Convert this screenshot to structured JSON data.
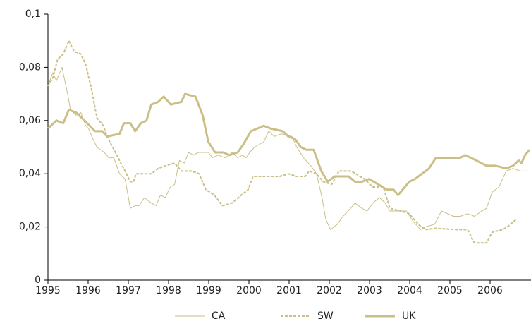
{
  "chart_data": {
    "type": "line",
    "xlim": [
      1995,
      2007
    ],
    "xticks": [
      1995,
      1996,
      1997,
      1998,
      1999,
      2000,
      2001,
      2002,
      2003,
      2004,
      2005,
      2006
    ],
    "ylim": [
      0,
      0.1
    ],
    "yticks": [
      0,
      {
        "value": 0.02,
        "label": "0,02"
      },
      {
        "value": 0.04,
        "label": "0,04"
      },
      {
        "value": 0.06,
        "label": "0,06"
      },
      {
        "value": 0.08,
        "label": "0,08"
      },
      {
        "value": 0.1,
        "label": "0,1"
      }
    ],
    "grid": false,
    "legend": "bottom",
    "series": [
      {
        "name": "CA",
        "color": "#c9bf87",
        "style": "solid",
        "line_width": 1,
        "x": [
          1995.0,
          1995.12,
          1995.21,
          1995.35,
          1995.49,
          1995.56,
          1995.7,
          1995.82,
          1995.94,
          1996.01,
          1996.12,
          1996.22,
          1996.4,
          1996.52,
          1996.64,
          1996.78,
          1996.92,
          1997.05,
          1997.17,
          1997.27,
          1997.4,
          1997.57,
          1997.69,
          1997.8,
          1997.92,
          1998.04,
          1998.15,
          1998.27,
          1998.39,
          1998.5,
          1998.62,
          1998.74,
          1998.99,
          1999.09,
          1999.23,
          1999.41,
          1999.58,
          1999.72,
          1999.84,
          1999.93,
          2000.02,
          2000.14,
          2000.37,
          2000.49,
          2000.63,
          2000.8,
          2001.07,
          2001.19,
          2001.36,
          2001.54,
          2001.68,
          2001.82,
          2001.91,
          2002.03,
          2002.2,
          2002.34,
          2002.47,
          2002.64,
          2002.81,
          2002.94,
          2003.08,
          2003.25,
          2003.39,
          2003.51,
          2003.69,
          2003.92,
          2004.09,
          2004.27,
          2004.39,
          2004.62,
          2004.79,
          2005.09,
          2005.26,
          2005.44,
          2005.61,
          2005.79,
          2005.91,
          2006.05,
          2006.22,
          2006.4,
          2006.57,
          2006.75,
          2006.98
        ],
        "values": [
          0.073,
          0.078,
          0.075,
          0.08,
          0.07,
          0.064,
          0.062,
          0.063,
          0.058,
          0.057,
          0.053,
          0.05,
          0.048,
          0.046,
          0.046,
          0.04,
          0.038,
          0.027,
          0.028,
          0.028,
          0.031,
          0.029,
          0.028,
          0.032,
          0.031,
          0.035,
          0.036,
          0.045,
          0.044,
          0.048,
          0.047,
          0.048,
          0.048,
          0.046,
          0.047,
          0.046,
          0.048,
          0.046,
          0.047,
          0.046,
          0.048,
          0.05,
          0.052,
          0.056,
          0.054,
          0.055,
          0.054,
          0.05,
          0.046,
          0.043,
          0.04,
          0.031,
          0.023,
          0.019,
          0.021,
          0.024,
          0.026,
          0.029,
          0.027,
          0.026,
          0.029,
          0.031,
          0.029,
          0.026,
          0.026,
          0.026,
          0.022,
          0.019,
          0.02,
          0.021,
          0.026,
          0.024,
          0.024,
          0.025,
          0.024,
          0.026,
          0.027,
          0.033,
          0.035,
          0.041,
          0.042,
          0.041,
          0.041
        ]
      },
      {
        "name": "SW",
        "color": "#c9bf87",
        "style": "dashed",
        "line_width": 2,
        "x": [
          1995.0,
          1995.12,
          1995.24,
          1995.38,
          1995.52,
          1995.65,
          1995.82,
          1995.94,
          1996.08,
          1996.22,
          1996.38,
          1996.47,
          1996.61,
          1996.78,
          1996.92,
          1997.05,
          1997.13,
          1997.19,
          1997.4,
          1997.57,
          1997.74,
          1997.92,
          1998.15,
          1998.32,
          1998.57,
          1998.76,
          1998.93,
          1999.14,
          1999.34,
          1999.58,
          1999.81,
          1999.98,
          2000.1,
          2000.45,
          2000.77,
          2000.98,
          2001.19,
          2001.4,
          2001.5,
          2001.68,
          2001.85,
          2002.06,
          2002.24,
          2002.55,
          2002.87,
          2003.08,
          2003.34,
          2003.51,
          2003.78,
          2003.99,
          2004.21,
          2004.39,
          2004.65,
          2005.17,
          2005.44,
          2005.61,
          2005.91,
          2006.05,
          2006.31,
          2006.43,
          2006.66
        ],
        "values": [
          0.073,
          0.076,
          0.083,
          0.085,
          0.09,
          0.086,
          0.085,
          0.081,
          0.072,
          0.061,
          0.058,
          0.054,
          0.05,
          0.045,
          0.041,
          0.037,
          0.037,
          0.04,
          0.04,
          0.04,
          0.042,
          0.043,
          0.044,
          0.041,
          0.041,
          0.04,
          0.034,
          0.032,
          0.028,
          0.029,
          0.032,
          0.034,
          0.039,
          0.039,
          0.039,
          0.04,
          0.039,
          0.039,
          0.041,
          0.04,
          0.037,
          0.036,
          0.041,
          0.041,
          0.038,
          0.035,
          0.035,
          0.027,
          0.026,
          0.025,
          0.021,
          0.019,
          0.0195,
          0.019,
          0.019,
          0.014,
          0.014,
          0.018,
          0.019,
          0.02,
          0.023
        ]
      },
      {
        "name": "UK",
        "color": "#c9bf87",
        "style": "solid",
        "line_width": 3,
        "x": [
          1995.0,
          1995.21,
          1995.38,
          1995.52,
          1995.7,
          1995.91,
          1996.17,
          1996.35,
          1996.47,
          1996.78,
          1996.89,
          1997.05,
          1997.17,
          1997.31,
          1997.45,
          1997.57,
          1997.74,
          1997.88,
          1998.06,
          1998.32,
          1998.41,
          1998.67,
          1998.85,
          1998.99,
          1999.16,
          1999.37,
          1999.51,
          1999.72,
          1999.86,
          2000.05,
          2000.37,
          2000.54,
          2000.84,
          2000.98,
          2001.15,
          2001.29,
          2001.43,
          2001.61,
          2001.8,
          2001.96,
          2002.13,
          2002.48,
          2002.64,
          2002.81,
          2002.99,
          2003.22,
          2003.43,
          2003.6,
          2003.71,
          2003.99,
          2004.13,
          2004.48,
          2004.65,
          2004.86,
          2005.26,
          2005.38,
          2005.66,
          2005.91,
          2006.14,
          2006.4,
          2006.57,
          2006.71,
          2006.78,
          2006.87,
          2006.98
        ],
        "values": [
          0.057,
          0.06,
          0.059,
          0.064,
          0.063,
          0.06,
          0.056,
          0.056,
          0.054,
          0.055,
          0.059,
          0.059,
          0.056,
          0.059,
          0.06,
          0.066,
          0.067,
          0.069,
          0.066,
          0.067,
          0.07,
          0.069,
          0.062,
          0.052,
          0.048,
          0.048,
          0.047,
          0.048,
          0.051,
          0.056,
          0.058,
          0.057,
          0.056,
          0.054,
          0.053,
          0.05,
          0.049,
          0.049,
          0.041,
          0.037,
          0.039,
          0.039,
          0.037,
          0.037,
          0.038,
          0.036,
          0.034,
          0.034,
          0.032,
          0.037,
          0.038,
          0.042,
          0.046,
          0.046,
          0.046,
          0.047,
          0.045,
          0.043,
          0.043,
          0.042,
          0.043,
          0.045,
          0.044,
          0.047,
          0.049
        ]
      }
    ]
  }
}
